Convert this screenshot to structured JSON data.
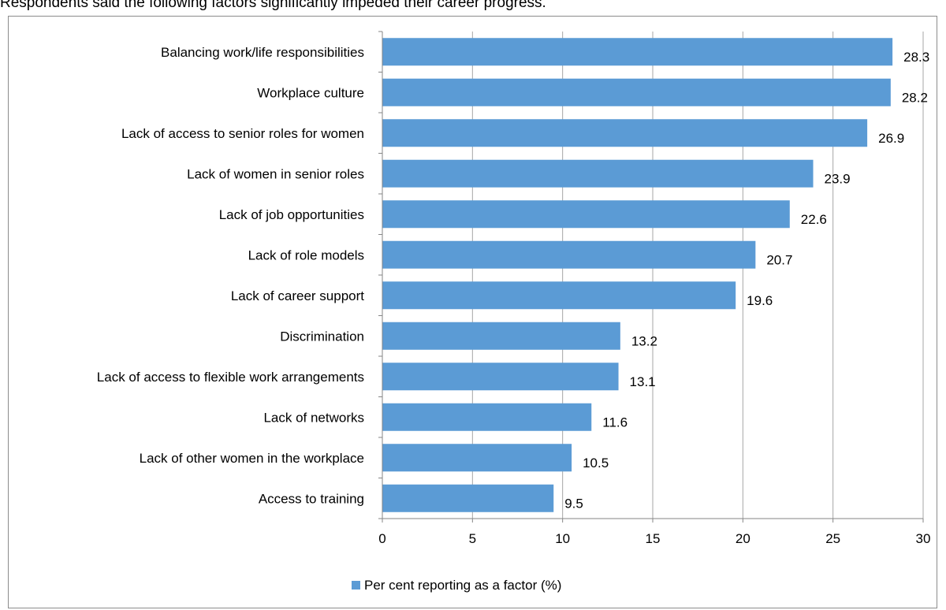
{
  "heading": "Respondents said the following factors significantly impeded their career progress.",
  "chart_data": {
    "type": "bar",
    "orientation": "horizontal",
    "categories": [
      "Balancing work/life responsibilities",
      "Workplace culture",
      "Lack of access to senior roles for women",
      "Lack of women in senior roles",
      "Lack of job opportunities",
      "Lack of role models",
      "Lack of career support",
      "Discrimination",
      "Lack of access to flexible work arrangements",
      "Lack of networks",
      "Lack of other women in the workplace",
      "Access to training"
    ],
    "series": [
      {
        "name": "Per cent reporting as a factor (%)",
        "values": [
          28.3,
          28.2,
          26.9,
          23.9,
          22.6,
          20.7,
          19.6,
          13.2,
          13.1,
          11.6,
          10.5,
          9.5
        ],
        "labels": [
          "28.3",
          "28.2",
          "26.9",
          "23.9",
          "22.6",
          "20.7",
          "19.6",
          "13.2",
          "13.1",
          "11.6",
          "10.5",
          "9.5"
        ]
      }
    ],
    "xlim": [
      0,
      30
    ],
    "xticks": [
      "0",
      "5",
      "10",
      "15",
      "20",
      "25",
      "30"
    ],
    "grid": "vertical",
    "legend": "bottom",
    "colors": {
      "bar": "#5b9bd5",
      "grid": "#a6a6a6",
      "axis": "#868686"
    }
  }
}
